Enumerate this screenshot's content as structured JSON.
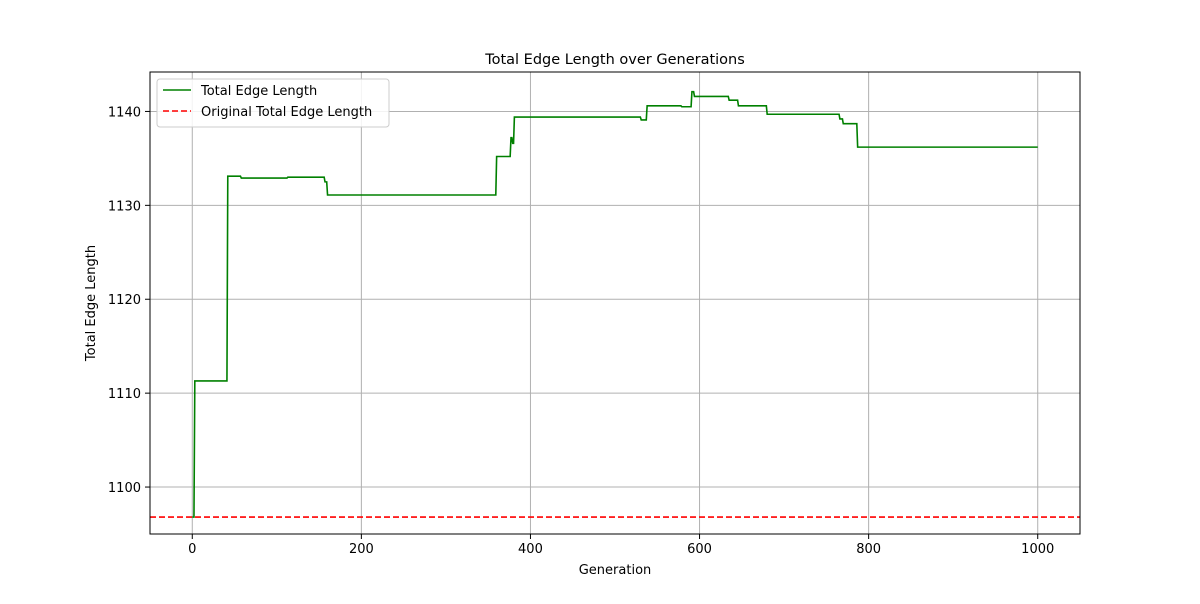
{
  "chart_data": {
    "type": "line",
    "title": "Total Edge Length over Generations",
    "xlabel": "Generation",
    "ylabel": "Total Edge Length",
    "xlim": [
      -50,
      1050
    ],
    "ylim": [
      1095,
      1144.2
    ],
    "x_ticks": [
      0,
      200,
      400,
      600,
      800,
      1000
    ],
    "y_ticks": [
      1100,
      1110,
      1120,
      1130,
      1140
    ],
    "grid": true,
    "legend_position": "upper-left",
    "series": [
      {
        "name": "Total Edge Length",
        "color": "#008000",
        "style": "solid",
        "points": [
          [
            0,
            1096.8
          ],
          [
            2,
            1096.8
          ],
          [
            3,
            1111.3
          ],
          [
            41,
            1111.3
          ],
          [
            42,
            1133.1
          ],
          [
            57,
            1133.1
          ],
          [
            58,
            1132.9
          ],
          [
            112,
            1132.9
          ],
          [
            113,
            1133.0
          ],
          [
            156,
            1133.0
          ],
          [
            157,
            1132.5
          ],
          [
            159,
            1132.5
          ],
          [
            160,
            1131.1
          ],
          [
            359,
            1131.1
          ],
          [
            360,
            1135.2
          ],
          [
            376,
            1135.2
          ],
          [
            377,
            1137.2
          ],
          [
            378,
            1137.2
          ],
          [
            379,
            1136.6
          ],
          [
            380,
            1136.6
          ],
          [
            381,
            1139.4
          ],
          [
            530,
            1139.4
          ],
          [
            531,
            1139.1
          ],
          [
            537,
            1139.1
          ],
          [
            538,
            1140.6
          ],
          [
            578,
            1140.6
          ],
          [
            579,
            1140.5
          ],
          [
            590,
            1140.5
          ],
          [
            591,
            1142.1
          ],
          [
            593,
            1142.1
          ],
          [
            594,
            1141.6
          ],
          [
            634,
            1141.6
          ],
          [
            635,
            1141.2
          ],
          [
            645,
            1141.2
          ],
          [
            646,
            1140.6
          ],
          [
            654,
            1140.6
          ],
          [
            655,
            1140.6
          ],
          [
            679,
            1140.6
          ],
          [
            680,
            1139.7
          ],
          [
            765,
            1139.7
          ],
          [
            766,
            1139.2
          ],
          [
            769,
            1139.2
          ],
          [
            770,
            1138.7
          ],
          [
            786,
            1138.7
          ],
          [
            787,
            1136.2
          ],
          [
            1000,
            1136.2
          ]
        ]
      },
      {
        "name": "Original Total Edge Length",
        "color": "#ff0000",
        "style": "dashed",
        "hline": 1096.8
      }
    ]
  }
}
